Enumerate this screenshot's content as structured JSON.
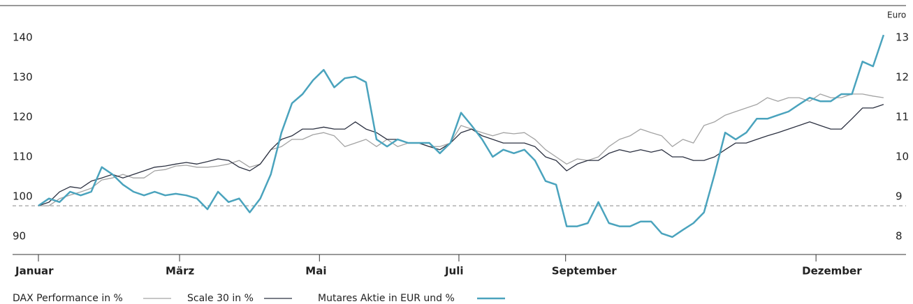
{
  "chart_data": {
    "type": "line",
    "x": [
      0,
      1,
      2,
      3,
      4,
      5,
      6,
      7,
      8,
      9,
      10,
      11,
      12,
      13,
      14,
      15,
      16,
      17,
      18,
      19,
      20,
      21,
      22,
      23,
      24,
      25,
      26,
      27,
      28,
      29,
      30,
      31,
      32,
      33,
      34,
      35,
      36,
      37,
      38,
      39,
      40,
      41,
      42,
      43,
      44,
      45,
      46,
      47,
      48,
      49,
      50,
      51,
      52,
      53,
      54,
      55,
      56,
      57,
      58,
      59,
      60,
      61,
      62,
      63,
      64,
      65,
      66,
      67,
      68,
      69,
      70,
      71,
      72,
      73,
      74,
      75,
      76,
      77,
      78,
      79,
      80
    ],
    "xlim": [
      0,
      82.12
    ],
    "xticks": [
      {
        "value": 0,
        "label": "Januar"
      },
      {
        "value": 13.36,
        "label": "März"
      },
      {
        "value": 26.6,
        "label": "Mai"
      },
      {
        "value": 39.8,
        "label": "Juli"
      },
      {
        "value": 49.9,
        "label": "September"
      },
      {
        "value": 73.6,
        "label": "Dezember"
      }
    ],
    "ylim": [
      85.44,
      148.07
    ],
    "yticks": [
      90,
      100,
      110,
      120,
      130,
      140
    ],
    "y2lim": [
      7.54,
      13.81
    ],
    "y2ticks": [
      8,
      9,
      10,
      11,
      12,
      13
    ],
    "y2_label": "Euro",
    "reference_line": 97.7,
    "series": [
      {
        "name": "DAX Performance in %",
        "color": "#a3a3a3",
        "values": [
          97.7,
          97.7,
          99.5,
          100.4,
          101.2,
          102.1,
          104.2,
          104.7,
          105.6,
          104.7,
          104.7,
          106.5,
          106.8,
          107.7,
          107.9,
          107.4,
          107.4,
          107.7,
          108.2,
          109.1,
          107.4,
          108.2,
          111.8,
          112.6,
          114.4,
          114.4,
          115.6,
          116.1,
          115.3,
          112.6,
          113.5,
          114.4,
          112.6,
          114.4,
          112.6,
          113.5,
          113.5,
          112.6,
          112.6,
          113.5,
          117.9,
          117.0,
          116.1,
          115.3,
          116.1,
          115.8,
          116.1,
          114.4,
          111.8,
          110.0,
          108.2,
          109.5,
          109.1,
          110.0,
          112.6,
          114.4,
          115.3,
          117.0,
          116.1,
          115.3,
          112.6,
          114.4,
          113.5,
          117.9,
          118.8,
          120.5,
          121.4,
          122.3,
          123.2,
          124.9,
          124.0,
          124.9,
          124.9,
          124.0,
          125.8,
          124.9,
          124.9,
          125.8,
          125.8,
          125.3,
          124.9
        ]
      },
      {
        "name": "Scale 30 in %",
        "color": "#2b3040",
        "values": [
          97.7,
          98.6,
          101.2,
          102.5,
          102.1,
          103.9,
          104.7,
          105.6,
          104.7,
          105.6,
          106.5,
          107.4,
          107.7,
          108.2,
          108.6,
          108.2,
          108.8,
          109.5,
          109.1,
          107.4,
          106.5,
          108.2,
          111.8,
          114.4,
          115.3,
          117.0,
          117.0,
          117.5,
          117.0,
          117.0,
          118.8,
          117.0,
          116.1,
          114.4,
          114.4,
          113.5,
          113.5,
          112.6,
          111.8,
          113.5,
          116.1,
          117.0,
          115.3,
          114.4,
          113.5,
          113.5,
          113.5,
          112.6,
          110.0,
          109.1,
          106.5,
          108.2,
          109.1,
          109.1,
          110.9,
          111.8,
          111.2,
          111.8,
          111.2,
          111.8,
          110.0,
          110.0,
          109.1,
          109.1,
          110.0,
          111.8,
          113.5,
          113.5,
          114.4,
          115.3,
          116.1,
          117.0,
          117.9,
          118.8,
          117.9,
          117.0,
          117.0,
          119.6,
          122.3,
          122.3,
          123.2
        ]
      },
      {
        "name": "Mutares Aktie in EUR und %",
        "color": "#4aa3bd",
        "axis": "y2",
        "values": [
          8.77,
          8.95,
          8.86,
          9.12,
          9.03,
          9.12,
          9.74,
          9.56,
          9.3,
          9.12,
          9.03,
          9.12,
          9.03,
          9.07,
          9.03,
          8.95,
          8.68,
          9.12,
          8.86,
          8.95,
          8.6,
          8.95,
          9.56,
          10.61,
          11.35,
          11.58,
          11.93,
          12.19,
          11.75,
          11.98,
          12.02,
          11.88,
          10.44,
          10.26,
          10.44,
          10.35,
          10.35,
          10.35,
          10.09,
          10.35,
          11.11,
          10.79,
          10.44,
          10.0,
          10.18,
          10.09,
          10.18,
          9.91,
          9.39,
          9.3,
          8.25,
          8.25,
          8.33,
          8.86,
          8.33,
          8.25,
          8.25,
          8.37,
          8.37,
          8.07,
          7.98,
          8.16,
          8.33,
          8.6,
          9.56,
          10.61,
          10.44,
          10.61,
          10.96,
          10.96,
          11.05,
          11.14,
          11.32,
          11.49,
          11.4,
          11.4,
          11.58,
          11.58,
          12.4,
          12.28,
          13.07
        ]
      }
    ]
  }
}
